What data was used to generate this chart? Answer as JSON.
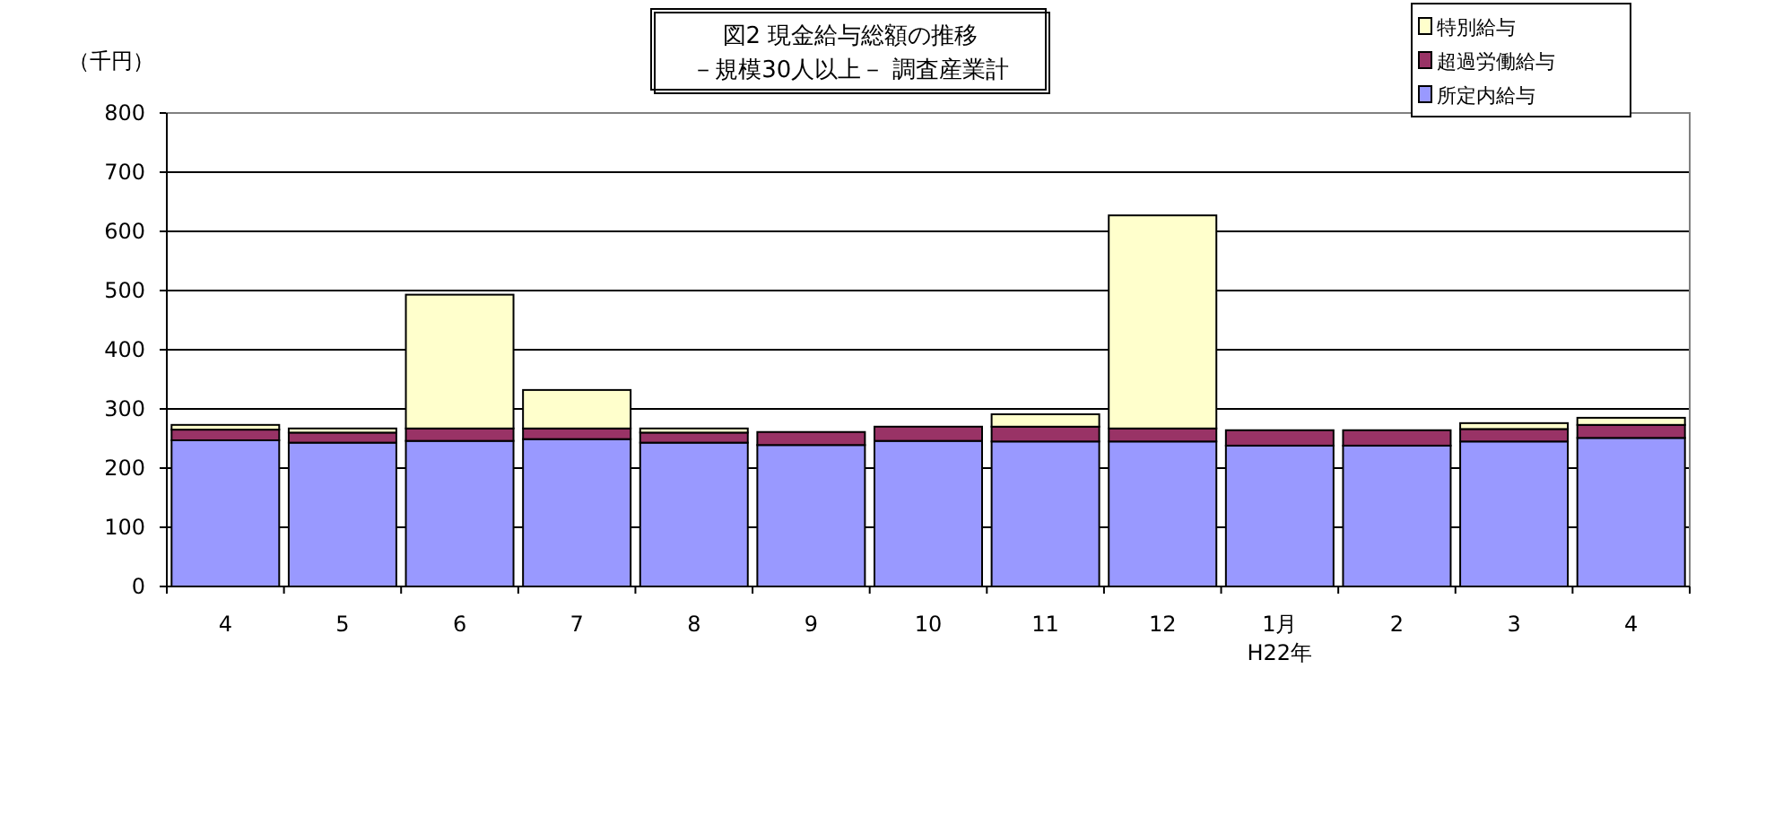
{
  "chart_data": {
    "type": "bar",
    "stacked": true,
    "title": "図2 現金給与総額の推移",
    "subtitle": "－規模30人以上－ 調査産業計",
    "ylabel": "（千円）",
    "categories": [
      "4",
      "5",
      "6",
      "7",
      "8",
      "9",
      "10",
      "11",
      "12",
      "1月\nH22年",
      "2",
      "3",
      "4"
    ],
    "series": [
      {
        "name": "所定内給与",
        "color": "#9999ff",
        "values": [
          247,
          243,
          246,
          249,
          243,
          239,
          246,
          245,
          245,
          238,
          238,
          245,
          251
        ]
      },
      {
        "name": "超過労働給与",
        "color": "#993366",
        "values": [
          18,
          17,
          21,
          18,
          17,
          22,
          24,
          25,
          22,
          26,
          26,
          21,
          22
        ]
      },
      {
        "name": "特別給与",
        "color": "#ffffcc",
        "values": [
          8,
          7,
          226,
          65,
          7,
          0,
          0,
          21,
          360,
          0,
          0,
          10,
          12
        ]
      }
    ],
    "ylim": [
      0,
      800
    ],
    "yticks": [
      0,
      100,
      200,
      300,
      400,
      500,
      600,
      700,
      800
    ],
    "grid": "y",
    "legend": "top right"
  }
}
